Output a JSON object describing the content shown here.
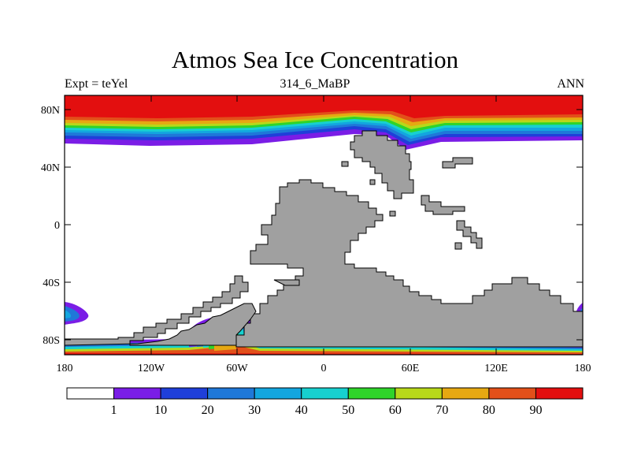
{
  "title": "Atmos Sea Ice Concentration",
  "subtitle_left": "Expt = teYel",
  "subtitle_center": "314_6_MaBP",
  "subtitle_right": "ANN",
  "x_ticks": [
    "180",
    "120W",
    "60W",
    "0",
    "60E",
    "120E",
    "180"
  ],
  "y_ticks": [
    "80N",
    "40N",
    "0",
    "40S",
    "80S"
  ],
  "colorbar": {
    "levels": [
      "1",
      "10",
      "20",
      "30",
      "40",
      "50",
      "60",
      "70",
      "80",
      "90"
    ],
    "colors": [
      "#ffffff",
      "#7a1de6",
      "#1f3fd9",
      "#1f78d8",
      "#13a6df",
      "#17d0cf",
      "#2fd42a",
      "#b8d81a",
      "#e6a812",
      "#e2501a",
      "#e30f0f"
    ]
  },
  "land_color": "#a0a0a0"
}
